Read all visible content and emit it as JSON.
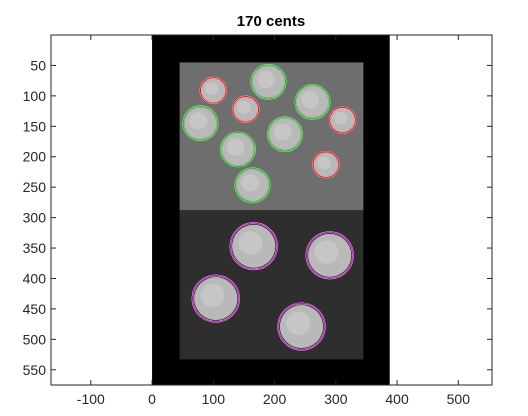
{
  "figure": {
    "title": "170 cents"
  },
  "axes": {
    "x_tick_labels": [
      "-100",
      "0",
      "100",
      "200",
      "300",
      "400",
      "500"
    ],
    "y_tick_labels": [
      "50",
      "100",
      "150",
      "200",
      "250",
      "300",
      "350",
      "400",
      "450",
      "500",
      "550"
    ],
    "xlim": [
      -165,
      555
    ],
    "ylim": [
      0,
      575
    ],
    "colors": {
      "frame": "#262626",
      "axes_bg": "#ffffff"
    }
  },
  "image": {
    "type": "grayscale photo of coins on a two-tone background",
    "extent_x": [
      0,
      388
    ],
    "extent_y": [
      0,
      575
    ],
    "colors": {
      "border": "#000000",
      "upper_bg": "#6e6e6e",
      "lower_bg": "#2e2e2e",
      "coin": "#b9b9b9"
    }
  },
  "detections": {
    "colors": {
      "dime": "#ff0000",
      "nickel": "#00c800",
      "quarter": "#cc00cc"
    },
    "coins": [
      {
        "kind": "dime",
        "x": 100,
        "y": 91,
        "r": 21
      },
      {
        "kind": "nickel",
        "x": 190,
        "y": 77,
        "r": 28
      },
      {
        "kind": "dime",
        "x": 153,
        "y": 122,
        "r": 21
      },
      {
        "kind": "nickel",
        "x": 262,
        "y": 110,
        "r": 28
      },
      {
        "kind": "dime",
        "x": 311,
        "y": 140,
        "r": 21
      },
      {
        "kind": "nickel",
        "x": 79,
        "y": 145,
        "r": 28
      },
      {
        "kind": "nickel",
        "x": 217,
        "y": 163,
        "r": 28
      },
      {
        "kind": "nickel",
        "x": 140,
        "y": 188,
        "r": 28
      },
      {
        "kind": "dime",
        "x": 284,
        "y": 213,
        "r": 21
      },
      {
        "kind": "nickel",
        "x": 164,
        "y": 247,
        "r": 28
      },
      {
        "kind": "quarter",
        "x": 166,
        "y": 347,
        "r": 38
      },
      {
        "kind": "quarter",
        "x": 290,
        "y": 362,
        "r": 38
      },
      {
        "kind": "quarter",
        "x": 104,
        "y": 433,
        "r": 38
      },
      {
        "kind": "quarter",
        "x": 244,
        "y": 479,
        "r": 38
      }
    ]
  }
}
